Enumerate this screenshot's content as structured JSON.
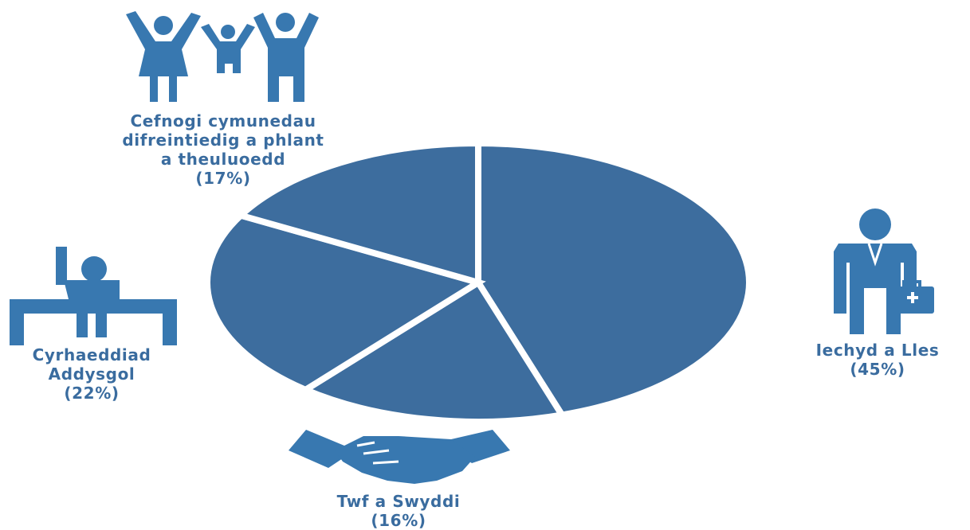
{
  "colors": {
    "pie": "#3d6d9e",
    "icon": "#3878b0",
    "text": "#3a6c9f",
    "separator": "#ffffff"
  },
  "chart_data": {
    "type": "pie",
    "slices": [
      {
        "key": "health",
        "label_lines": [
          "Iechyd a Lles"
        ],
        "pct_label": "(45%)",
        "value": 45,
        "icon": "doctor-icon"
      },
      {
        "key": "growth",
        "label_lines": [
          "Twf a Swyddi"
        ],
        "pct_label": "(16%)",
        "value": 16,
        "icon": "handshake-icon"
      },
      {
        "key": "education",
        "label_lines": [
          "Cyrhaeddiad",
          "Addysgol"
        ],
        "pct_label": "(22%)",
        "value": 22,
        "icon": "student-desk-icon"
      },
      {
        "key": "family",
        "label_lines": [
          "Cefnogi cymunedau",
          "difreintiedig a phlant",
          "a theuluoedd"
        ],
        "pct_label": "(17%)",
        "value": 17,
        "icon": "family-icon"
      }
    ]
  }
}
